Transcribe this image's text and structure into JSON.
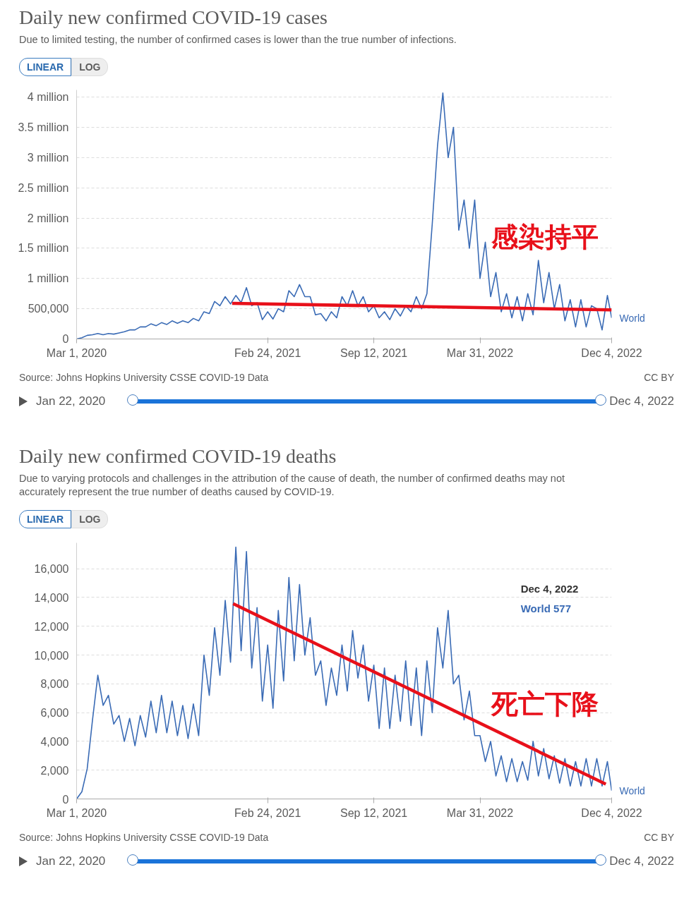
{
  "chart_data": [
    {
      "type": "line",
      "title": "Daily new confirmed COVID-19 cases",
      "subtitle": "Due to limited testing, the number of confirmed cases is lower than the true number of infections.",
      "x": [
        "2020-03-01",
        "2020-03-11",
        "2020-03-21",
        "2020-03-31",
        "2020-04-10",
        "2020-04-20",
        "2020-04-30",
        "2020-05-10",
        "2020-05-20",
        "2020-05-30",
        "2020-06-09",
        "2020-06-19",
        "2020-06-29",
        "2020-07-09",
        "2020-07-19",
        "2020-07-29",
        "2020-08-08",
        "2020-08-18",
        "2020-08-28",
        "2020-09-07",
        "2020-09-17",
        "2020-09-27",
        "2020-10-07",
        "2020-10-17",
        "2020-10-27",
        "2020-11-06",
        "2020-11-16",
        "2020-11-26",
        "2020-12-06",
        "2020-12-16",
        "2020-12-26",
        "2021-01-05",
        "2021-01-15",
        "2021-01-25",
        "2021-02-04",
        "2021-02-14",
        "2021-02-24",
        "2021-03-06",
        "2021-03-16",
        "2021-03-26",
        "2021-04-05",
        "2021-04-15",
        "2021-04-25",
        "2021-05-05",
        "2021-05-15",
        "2021-05-25",
        "2021-06-04",
        "2021-06-14",
        "2021-06-24",
        "2021-07-04",
        "2021-07-14",
        "2021-07-24",
        "2021-08-03",
        "2021-08-13",
        "2021-08-23",
        "2021-09-02",
        "2021-09-12",
        "2021-09-22",
        "2021-10-02",
        "2021-10-12",
        "2021-10-22",
        "2021-11-01",
        "2021-11-11",
        "2021-11-21",
        "2021-12-01",
        "2021-12-11",
        "2021-12-21",
        "2021-12-31",
        "2022-01-10",
        "2022-01-20",
        "2022-01-30",
        "2022-02-09",
        "2022-02-19",
        "2022-03-01",
        "2022-03-11",
        "2022-03-21",
        "2022-03-31",
        "2022-04-10",
        "2022-04-20",
        "2022-04-30",
        "2022-05-10",
        "2022-05-20",
        "2022-05-30",
        "2022-06-09",
        "2022-06-19",
        "2022-06-29",
        "2022-07-09",
        "2022-07-19",
        "2022-07-29",
        "2022-08-08",
        "2022-08-18",
        "2022-08-28",
        "2022-09-07",
        "2022-09-17",
        "2022-09-27",
        "2022-10-07",
        "2022-10-17",
        "2022-10-27",
        "2022-11-06",
        "2022-11-16",
        "2022-11-26",
        "2022-12-04"
      ],
      "xlim": [
        "2020-03-01",
        "2022-12-04"
      ],
      "xticks": [
        {
          "value": "2020-03-01",
          "label": "Mar 1, 2020"
        },
        {
          "value": "2021-02-24",
          "label": "Feb 24, 2021"
        },
        {
          "value": "2021-09-12",
          "label": "Sep 12, 2021"
        },
        {
          "value": "2022-03-31",
          "label": "Mar 31, 2022"
        },
        {
          "value": "2022-12-04",
          "label": "Dec 4, 2022"
        }
      ],
      "ylim": [
        0,
        4120000
      ],
      "yticks": [
        0,
        {
          "value": 500000,
          "label": "500,000"
        },
        {
          "value": 1000000,
          "label": "1 million"
        },
        {
          "value": 1500000,
          "label": "1.5 million"
        },
        {
          "value": 2000000,
          "label": "2 million"
        },
        {
          "value": 2500000,
          "label": "2.5 million"
        },
        {
          "value": 3000000,
          "label": "3 million"
        },
        {
          "value": 3500000,
          "label": "3.5 million"
        },
        {
          "value": 4000000,
          "label": "4 million"
        }
      ],
      "grid": "y",
      "series": [
        {
          "name": "World",
          "color": "#3a6bb5",
          "values": [
            0,
            20000,
            60000,
            70000,
            90000,
            70000,
            90000,
            80000,
            100000,
            120000,
            150000,
            150000,
            200000,
            200000,
            250000,
            220000,
            270000,
            240000,
            300000,
            260000,
            300000,
            270000,
            340000,
            300000,
            450000,
            420000,
            620000,
            550000,
            700000,
            580000,
            720000,
            600000,
            850000,
            550000,
            600000,
            320000,
            450000,
            330000,
            500000,
            450000,
            800000,
            700000,
            900000,
            700000,
            700000,
            400000,
            420000,
            300000,
            450000,
            350000,
            700000,
            550000,
            800000,
            550000,
            700000,
            450000,
            550000,
            350000,
            450000,
            320000,
            500000,
            380000,
            550000,
            450000,
            700000,
            500000,
            750000,
            1900000,
            3200000,
            4070000,
            3000000,
            3500000,
            1800000,
            2300000,
            1500000,
            2300000,
            1000000,
            1600000,
            700000,
            1100000,
            450000,
            750000,
            350000,
            700000,
            300000,
            750000,
            400000,
            1300000,
            600000,
            1100000,
            500000,
            900000,
            300000,
            650000,
            200000,
            650000,
            200000,
            550000,
            500000,
            150000,
            720000,
            350000
          ]
        },
        {
          "type": "line",
          "color": "#e8101a",
          "x": [
            "2020-12-19",
            "2022-12-04"
          ],
          "values": [
            590000,
            480000
          ]
        }
      ],
      "annotations": [
        "LINEAR",
        "LOG",
        "Source: Johns Hopkins University CSSE COVID-19 Data",
        "CC BY",
        "Jan 22, 2020",
        "Dec 4, 2022",
        "感染持平"
      ]
    },
    {
      "type": "line",
      "title": "Daily new confirmed COVID-19 deaths",
      "subtitle": "Due to varying protocols and challenges in the attribution of the cause of death, the number of confirmed deaths may not accurately represent the true number of deaths caused by COVID-19.",
      "x": [
        "2020-03-01",
        "2020-03-11",
        "2020-03-21",
        "2020-03-31",
        "2020-04-10",
        "2020-04-20",
        "2020-04-30",
        "2020-05-10",
        "2020-05-20",
        "2020-05-30",
        "2020-06-09",
        "2020-06-19",
        "2020-06-29",
        "2020-07-09",
        "2020-07-19",
        "2020-07-29",
        "2020-08-08",
        "2020-08-18",
        "2020-08-28",
        "2020-09-07",
        "2020-09-17",
        "2020-09-27",
        "2020-10-07",
        "2020-10-17",
        "2020-10-27",
        "2020-11-06",
        "2020-11-16",
        "2020-11-26",
        "2020-12-06",
        "2020-12-16",
        "2020-12-26",
        "2021-01-05",
        "2021-01-15",
        "2021-01-25",
        "2021-02-04",
        "2021-02-14",
        "2021-02-24",
        "2021-03-06",
        "2021-03-16",
        "2021-03-26",
        "2021-04-05",
        "2021-04-15",
        "2021-04-25",
        "2021-05-05",
        "2021-05-15",
        "2021-05-25",
        "2021-06-04",
        "2021-06-14",
        "2021-06-24",
        "2021-07-04",
        "2021-07-14",
        "2021-07-24",
        "2021-08-03",
        "2021-08-13",
        "2021-08-23",
        "2021-09-02",
        "2021-09-12",
        "2021-09-22",
        "2021-10-02",
        "2021-10-12",
        "2021-10-22",
        "2021-11-01",
        "2021-11-11",
        "2021-11-21",
        "2021-12-01",
        "2021-12-11",
        "2021-12-21",
        "2021-12-31",
        "2022-01-10",
        "2022-01-20",
        "2022-01-30",
        "2022-02-09",
        "2022-02-19",
        "2022-03-01",
        "2022-03-11",
        "2022-03-21",
        "2022-03-31",
        "2022-04-10",
        "2022-04-20",
        "2022-04-30",
        "2022-05-10",
        "2022-05-20",
        "2022-05-30",
        "2022-06-09",
        "2022-06-19",
        "2022-06-29",
        "2022-07-09",
        "2022-07-19",
        "2022-07-29",
        "2022-08-08",
        "2022-08-18",
        "2022-08-28",
        "2022-09-07",
        "2022-09-17",
        "2022-09-27",
        "2022-10-07",
        "2022-10-17",
        "2022-10-27",
        "2022-11-06",
        "2022-11-16",
        "2022-11-26",
        "2022-12-04"
      ],
      "xlim": [
        "2020-03-01",
        "2022-12-04"
      ],
      "xticks": [
        {
          "value": "2020-03-01",
          "label": "Mar 1, 2020"
        },
        {
          "value": "2021-02-24",
          "label": "Feb 24, 2021"
        },
        {
          "value": "2021-09-12",
          "label": "Sep 12, 2021"
        },
        {
          "value": "2022-03-31",
          "label": "Mar 31, 2022"
        },
        {
          "value": "2022-12-04",
          "label": "Dec 4, 2022"
        }
      ],
      "ylim": [
        0,
        17800
      ],
      "yticks": [
        0,
        {
          "value": 2000,
          "label": "2,000"
        },
        {
          "value": 4000,
          "label": "4,000"
        },
        {
          "value": 6000,
          "label": "6,000"
        },
        {
          "value": 8000,
          "label": "8,000"
        },
        {
          "value": 10000,
          "label": "10,000"
        },
        {
          "value": 12000,
          "label": "12,000"
        },
        {
          "value": 14000,
          "label": "14,000"
        },
        {
          "value": 16000,
          "label": "16,000"
        }
      ],
      "grid": "y",
      "series": [
        {
          "name": "World",
          "color": "#3a6bb5",
          "values": [
            0,
            500,
            2100,
            5500,
            8600,
            6500,
            7200,
            5200,
            5800,
            4000,
            5600,
            3700,
            5800,
            4300,
            6800,
            4600,
            7200,
            4600,
            6800,
            4400,
            6500,
            4200,
            6600,
            4400,
            10000,
            7200,
            11900,
            8600,
            13800,
            9500,
            17500,
            10300,
            17200,
            9100,
            13300,
            6800,
            10700,
            6300,
            13100,
            8200,
            15400,
            9600,
            14900,
            10000,
            12600,
            8600,
            9600,
            6500,
            9100,
            7200,
            10700,
            7500,
            11700,
            8400,
            10700,
            6800,
            9300,
            4900,
            9100,
            4900,
            8600,
            5400,
            9600,
            5100,
            9100,
            4400,
            9600,
            6000,
            11900,
            9100,
            13100,
            8000,
            8600,
            5500,
            7500,
            4400,
            4400,
            2600,
            4000,
            1600,
            3000,
            1200,
            2800,
            1200,
            2600,
            1300,
            4000,
            1600,
            3500,
            1400,
            3000,
            1100,
            2800,
            900,
            2600,
            900,
            2800,
            900,
            2800,
            900,
            2600,
            577
          ]
        },
        {
          "type": "line",
          "color": "#e8101a",
          "x": [
            "2020-12-21",
            "2022-11-23"
          ],
          "values": [
            13570,
            1030
          ]
        }
      ],
      "annotations": [
        "LINEAR",
        "LOG",
        "Source: Johns Hopkins University CSSE COVID-19 Data",
        "CC BY",
        "Jan 22, 2020",
        "Dec 4, 2022",
        "Dec 4, 2022",
        "World   577",
        "死亡下降"
      ]
    }
  ]
}
